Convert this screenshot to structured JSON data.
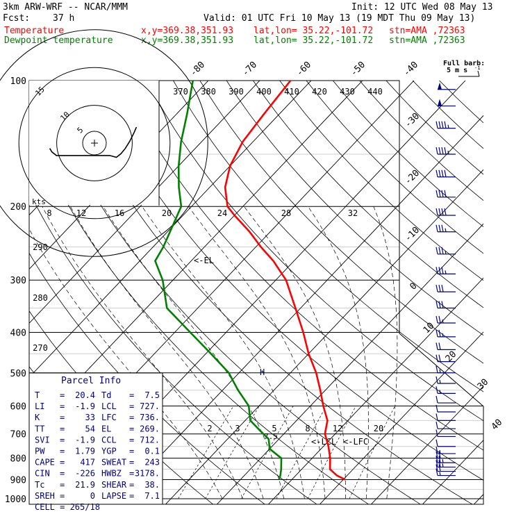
{
  "header": {
    "model": "3km ARW-WRF -- NCAR/MMM",
    "init": "Init: 12 UTC Wed 08 May 13",
    "fcst_label": "Fcst:",
    "fcst_hours": "37 h",
    "valid": "Valid: 01 UTC Fri 10 May 13 (19 MDT Thu 09 May 13)",
    "temp_line": {
      "label": "Temperature",
      "xy": "x,y=369.38,351.93",
      "latlon": "lat,lon= 35.22,-101.72",
      "stn": "stn=AMA ,72363"
    },
    "dew_line": {
      "label": "Dewpoint temperature",
      "xy": "x,y=369.38,351.93",
      "latlon": "lat,lon= 35.22,-101.72",
      "stn": "stn=AMA ,72363"
    }
  },
  "barb_legend": {
    "line1": "Full barb:",
    "line2": "5 m s",
    "sup": "-1"
  },
  "parcel_info": {
    "title": "Parcel Info",
    "rows": [
      {
        "l1": "T",
        "v1": "20.4",
        "l2": "Td",
        "v2": "7.5"
      },
      {
        "l1": "LI",
        "v1": "-1.9",
        "l2": "LCL",
        "v2": "727."
      },
      {
        "l1": "K",
        "v1": "33",
        "l2": "LFC",
        "v2": "736."
      },
      {
        "l1": "TT",
        "v1": "54",
        "l2": "EL",
        "v2": "269."
      },
      {
        "l1": "SVI",
        "v1": "-1.9",
        "l2": "CCL",
        "v2": "712."
      },
      {
        "l1": "PW",
        "v1": "1.79",
        "l2": "YGP",
        "v2": "0.1"
      },
      {
        "l1": "CAPE",
        "v1": "417",
        "l2": "SWEAT",
        "v2": "243"
      },
      {
        "l1": "CIN",
        "v1": "-226",
        "l2": "HWBZ",
        "v2": "3178."
      },
      {
        "l1": "Tc",
        "v1": "21.9",
        "l2": "SHEAR",
        "v2": "38."
      },
      {
        "l1": "SREH",
        "v1": "0",
        "l2": "LAPSE",
        "v2": "7.1"
      }
    ],
    "cell": "CELL = 265/18"
  },
  "hodograph": {
    "unit_label": "kts",
    "ring_labels": [
      "5",
      "10",
      "15"
    ],
    "points_kts": [
      [
        -17,
        -3
      ],
      [
        -16,
        -5
      ],
      [
        -14,
        -7
      ],
      [
        -8,
        -7
      ],
      [
        -2,
        -7
      ],
      [
        2,
        -7
      ],
      [
        6,
        -7
      ],
      [
        10,
        -7
      ],
      [
        13,
        -8
      ],
      [
        15,
        -6
      ],
      [
        17,
        -3
      ],
      [
        19,
        1
      ],
      [
        21,
        6
      ],
      [
        22,
        9
      ]
    ]
  },
  "chart_data": {
    "type": "line",
    "title": "",
    "xlabel": "",
    "ylabel": "",
    "pressure_ticks": [
      100,
      200,
      300,
      400,
      500,
      600,
      700,
      800,
      900,
      1000
    ],
    "isotherm_ticks": [
      -80,
      -70,
      -60,
      -50,
      -40,
      -30,
      -20,
      -10,
      0,
      10,
      20,
      30,
      40
    ],
    "theta_labels": [
      370,
      380,
      390,
      400,
      410,
      420,
      430,
      440
    ],
    "theta_side_labels": [
      290,
      280,
      270
    ],
    "mixing_ratio_labels_top": [
      "8",
      "12",
      "16",
      "20",
      "24",
      "28",
      "32"
    ],
    "mixing_ratio_labels_bottom": [
      "2",
      "3",
      "5",
      "8",
      "12",
      "20"
    ],
    "level_markers": {
      "lcl": "<-LCL",
      "lfc": "<-LFC",
      "el": "<-EL",
      "h": "H",
      "parcel_mark": "7.5"
    },
    "series": [
      {
        "name": "Temperature",
        "color": "#ff0000",
        "points": [
          [
            900,
            20.4
          ],
          [
            880,
            18
          ],
          [
            850,
            15.5
          ],
          [
            800,
            13.5
          ],
          [
            750,
            11
          ],
          [
            700,
            8
          ],
          [
            650,
            6
          ],
          [
            600,
            2.5
          ],
          [
            550,
            -1
          ],
          [
            500,
            -5
          ],
          [
            450,
            -10
          ],
          [
            400,
            -15
          ],
          [
            350,
            -21
          ],
          [
            300,
            -28
          ],
          [
            270,
            -34
          ],
          [
            250,
            -39
          ],
          [
            230,
            -44
          ],
          [
            210,
            -50
          ],
          [
            200,
            -53
          ],
          [
            180,
            -57
          ],
          [
            160,
            -60
          ],
          [
            140,
            -62
          ],
          [
            120,
            -63
          ],
          [
            100,
            -64
          ]
        ]
      },
      {
        "name": "Dewpoint temperature",
        "color": "#008000",
        "points": [
          [
            900,
            7.5
          ],
          [
            880,
            7
          ],
          [
            850,
            6
          ],
          [
            800,
            4
          ],
          [
            760,
            0
          ],
          [
            720,
            -2
          ],
          [
            700,
            -4
          ],
          [
            650,
            -9
          ],
          [
            600,
            -12
          ],
          [
            550,
            -17
          ],
          [
            500,
            -22
          ],
          [
            450,
            -29
          ],
          [
            400,
            -37
          ],
          [
            350,
            -46
          ],
          [
            300,
            -52
          ],
          [
            270,
            -57
          ],
          [
            250,
            -58
          ],
          [
            200,
            -62
          ],
          [
            180,
            -66
          ],
          [
            160,
            -70
          ],
          [
            140,
            -74
          ],
          [
            120,
            -78
          ],
          [
            100,
            -83
          ]
        ]
      }
    ],
    "wind_barbs": [
      {
        "p": 105,
        "dir": 270,
        "spd": 50
      },
      {
        "p": 115,
        "dir": 270,
        "spd": 50
      },
      {
        "p": 130,
        "dir": 270,
        "spd": 45
      },
      {
        "p": 150,
        "dir": 268,
        "spd": 45
      },
      {
        "p": 170,
        "dir": 268,
        "spd": 40
      },
      {
        "p": 190,
        "dir": 265,
        "spd": 40
      },
      {
        "p": 210,
        "dir": 265,
        "spd": 40
      },
      {
        "p": 230,
        "dir": 262,
        "spd": 35
      },
      {
        "p": 260,
        "dir": 262,
        "spd": 35
      },
      {
        "p": 290,
        "dir": 260,
        "spd": 35
      },
      {
        "p": 320,
        "dir": 258,
        "spd": 30
      },
      {
        "p": 350,
        "dir": 255,
        "spd": 30
      },
      {
        "p": 380,
        "dir": 250,
        "spd": 25
      },
      {
        "p": 410,
        "dir": 245,
        "spd": 25
      },
      {
        "p": 440,
        "dir": 240,
        "spd": 20
      },
      {
        "p": 470,
        "dir": 235,
        "spd": 20
      },
      {
        "p": 500,
        "dir": 230,
        "spd": 15
      },
      {
        "p": 530,
        "dir": 225,
        "spd": 15
      },
      {
        "p": 560,
        "dir": 220,
        "spd": 15
      },
      {
        "p": 590,
        "dir": 215,
        "spd": 10
      },
      {
        "p": 620,
        "dir": 210,
        "spd": 10
      },
      {
        "p": 650,
        "dir": 200,
        "spd": 10
      },
      {
        "p": 680,
        "dir": 190,
        "spd": 10
      },
      {
        "p": 710,
        "dir": 185,
        "spd": 10
      },
      {
        "p": 750,
        "dir": 180,
        "spd": 10
      },
      {
        "p": 780,
        "dir": 175,
        "spd": 15
      },
      {
        "p": 800,
        "dir": 170,
        "spd": 20
      },
      {
        "p": 820,
        "dir": 165,
        "spd": 25
      },
      {
        "p": 840,
        "dir": 160,
        "spd": 25
      },
      {
        "p": 860,
        "dir": 160,
        "spd": 20
      },
      {
        "p": 880,
        "dir": 165,
        "spd": 15
      }
    ]
  }
}
